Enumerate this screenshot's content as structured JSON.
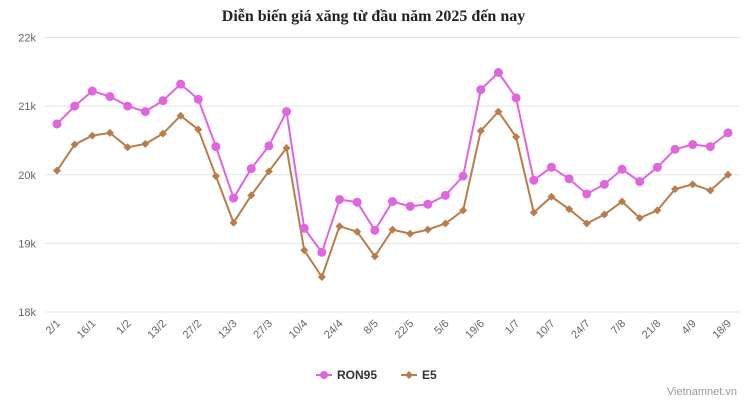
{
  "chart_data": {
    "type": "line",
    "title": "Diễn biến giá xăng từ đầu năm 2025 đến nay",
    "xlabel": "",
    "ylabel": "",
    "ylim": [
      18000,
      22000
    ],
    "y_ticks": [
      18000,
      19000,
      20000,
      21000,
      22000
    ],
    "y_tick_labels": [
      "18k",
      "19k",
      "20k",
      "21k",
      "22k"
    ],
    "x_tick_labels": [
      "2/1",
      "16/1",
      "1/2",
      "13/2",
      "27/2",
      "13/3",
      "27/3",
      "10/4",
      "24/4",
      "8/5",
      "22/5",
      "5/6",
      "19/6",
      "1/7",
      "10/7",
      "24/7",
      "7/8",
      "21/8",
      "4/9",
      "18/9"
    ],
    "x_tick_every": 2,
    "grid": true,
    "legend_position": "bottom",
    "series": [
      {
        "name": "RON95",
        "color": "#e066dd",
        "marker": "circle",
        "values": [
          20740,
          21000,
          21220,
          21140,
          21000,
          20920,
          21080,
          21320,
          21100,
          20410,
          19660,
          20090,
          20420,
          20920,
          19220,
          18870,
          19640,
          19600,
          19190,
          19610,
          19540,
          19570,
          19700,
          19980,
          21240,
          21490,
          21120,
          19920,
          20110,
          19940,
          19720,
          19860,
          20080,
          19900,
          20110,
          20370,
          20440,
          20410,
          20610
        ]
      },
      {
        "name": "E5",
        "color": "#b97d4b",
        "marker": "diamond",
        "values": [
          20060,
          20440,
          20570,
          20610,
          20400,
          20450,
          20600,
          20860,
          20660,
          19980,
          19300,
          19700,
          20050,
          20390,
          18900,
          18510,
          19250,
          19170,
          18810,
          19200,
          19140,
          19200,
          19290,
          19480,
          20640,
          20920,
          20550,
          19450,
          19680,
          19500,
          19290,
          19420,
          19610,
          19370,
          19480,
          19790,
          19860,
          19770,
          20000
        ]
      }
    ]
  },
  "watermark": "Vietnamnet.vn"
}
